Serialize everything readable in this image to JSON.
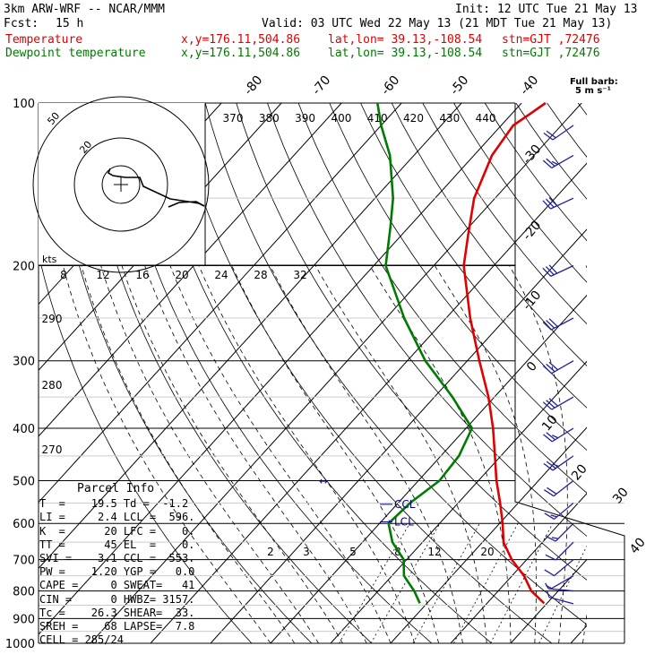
{
  "header": {
    "model": "3km ARW-WRF -- NCAR/MMM",
    "init": "Init: 12 UTC Tue 21 May 13",
    "fcst_label": "Fcst:",
    "fcst_value": "15 h",
    "valid": "Valid: 03 UTC Wed 22 May 13 (21 MDT Tue 21 May 13)",
    "lines": [
      {
        "name": "Temperature",
        "xy": "x,y=176.11,504.86",
        "latlon": "lat,lon= 39.13,-108.54",
        "stn": "stn=GJT ,72476",
        "color": "#e00000"
      },
      {
        "name": "Dewpoint temperature",
        "xy": "x,y=176.11,504.86",
        "latlon": "lat,lon= 39.13,-108.54",
        "stn": "stn=GJT ,72476",
        "color": "#007a00"
      }
    ]
  },
  "full_barb": {
    "line1": "Full barb:",
    "line2": "5 m s⁻¹"
  },
  "parcel_info": {
    "title": "Parcel Info",
    "rows": [
      "T  =    19.5 Td =  -1.2",
      "LI =     2.4 LCL =  596.",
      "K  =      20 LFC =    0.",
      "TT =      45 EL  =    0.",
      "SVI =    3.1 CCL =  553.",
      "PW =    1.20 YGP =   0.0",
      "CAPE =     0 SWEAT=   41",
      "CIN =      0 HWBZ= 3157.",
      "Tc =    26.3 SHEAR=  33.",
      "SREH =    68 LAPSE=  7.8",
      "CELL = 285/24"
    ]
  },
  "chart_data": {
    "type": "line",
    "diagram": "skew-T log-p",
    "y_scale": "log pressure",
    "ylabel": "",
    "pressure_ticks": [
      100,
      200,
      300,
      400,
      500,
      600,
      700,
      800,
      900,
      1000
    ],
    "temperature_tick_labels": [
      "-80",
      "-70",
      "-60",
      "-50",
      "-40",
      "-30",
      "-20",
      "-10",
      "0",
      "10",
      "20",
      "30",
      "40"
    ],
    "temperature_tick_values": [
      -80,
      -70,
      -60,
      -50,
      -40,
      -30,
      -20,
      -10,
      0,
      10,
      20,
      30,
      40
    ],
    "theta_labels": [
      "370",
      "380",
      "390",
      "400",
      "410",
      "420",
      "430",
      "440"
    ],
    "theta_left_labels": [
      "290",
      "280",
      "270"
    ],
    "mixing_ratio_labels": [
      "2",
      "3",
      "5",
      "8",
      "12",
      "20"
    ],
    "mixing_ratio_values": [
      2,
      3,
      5,
      8,
      12,
      20
    ],
    "markers": [
      {
        "label": "CCL",
        "p": 553
      },
      {
        "label": "LCL",
        "p": 596
      }
    ],
    "hodograph": {
      "speed_rings": [
        "20",
        "50"
      ],
      "speed_axis_label": "kts",
      "speed_axis_ticks": [
        "8",
        "12",
        "16",
        "20",
        "24",
        "28",
        "32"
      ]
    },
    "series": [
      {
        "name": "Temperature",
        "color": "#e00000",
        "points": [
          [
            843,
            19.5
          ],
          [
            800,
            15.5
          ],
          [
            750,
            12
          ],
          [
            700,
            7.5
          ],
          [
            650,
            3.5
          ],
          [
            600,
            0.5
          ],
          [
            550,
            -3
          ],
          [
            500,
            -7
          ],
          [
            450,
            -11
          ],
          [
            400,
            -15.5
          ],
          [
            350,
            -21
          ],
          [
            300,
            -28
          ],
          [
            250,
            -36
          ],
          [
            200,
            -45
          ],
          [
            175,
            -49
          ],
          [
            150,
            -53.5
          ],
          [
            125,
            -57
          ],
          [
            110,
            -58
          ],
          [
            105,
            -57
          ],
          [
            100,
            -56
          ]
        ]
      },
      {
        "name": "Dewpoint temperature",
        "color": "#007a00",
        "points": [
          [
            843,
            -1.2
          ],
          [
            800,
            -4
          ],
          [
            750,
            -8
          ],
          [
            700,
            -10.5
          ],
          [
            650,
            -15
          ],
          [
            600,
            -18.5
          ],
          [
            550,
            -18
          ],
          [
            500,
            -16.5
          ],
          [
            450,
            -17
          ],
          [
            400,
            -19
          ],
          [
            350,
            -27
          ],
          [
            300,
            -37
          ],
          [
            250,
            -47
          ],
          [
            200,
            -58
          ],
          [
            170,
            -63
          ],
          [
            150,
            -67
          ],
          [
            125,
            -74
          ],
          [
            110,
            -80
          ],
          [
            100,
            -84
          ]
        ]
      }
    ],
    "winds": [
      {
        "p": 845,
        "dir": 285,
        "spd": 9
      },
      {
        "p": 800,
        "dir": 275,
        "spd": 7
      },
      {
        "p": 750,
        "dir": 240,
        "spd": 5
      },
      {
        "p": 700,
        "dir": 230,
        "spd": 12
      },
      {
        "p": 650,
        "dir": 225,
        "spd": 14
      },
      {
        "p": 600,
        "dir": 225,
        "spd": 16
      },
      {
        "p": 550,
        "dir": 230,
        "spd": 18
      },
      {
        "p": 500,
        "dir": 232,
        "spd": 22
      },
      {
        "p": 450,
        "dir": 235,
        "spd": 25
      },
      {
        "p": 400,
        "dir": 238,
        "spd": 28
      },
      {
        "p": 350,
        "dir": 240,
        "spd": 30
      },
      {
        "p": 300,
        "dir": 240,
        "spd": 32
      },
      {
        "p": 250,
        "dir": 242,
        "spd": 33
      },
      {
        "p": 200,
        "dir": 245,
        "spd": 32
      },
      {
        "p": 150,
        "dir": 245,
        "spd": 30
      },
      {
        "p": 125,
        "dir": 240,
        "spd": 25
      },
      {
        "p": 110,
        "dir": 235,
        "spd": 20
      }
    ]
  }
}
